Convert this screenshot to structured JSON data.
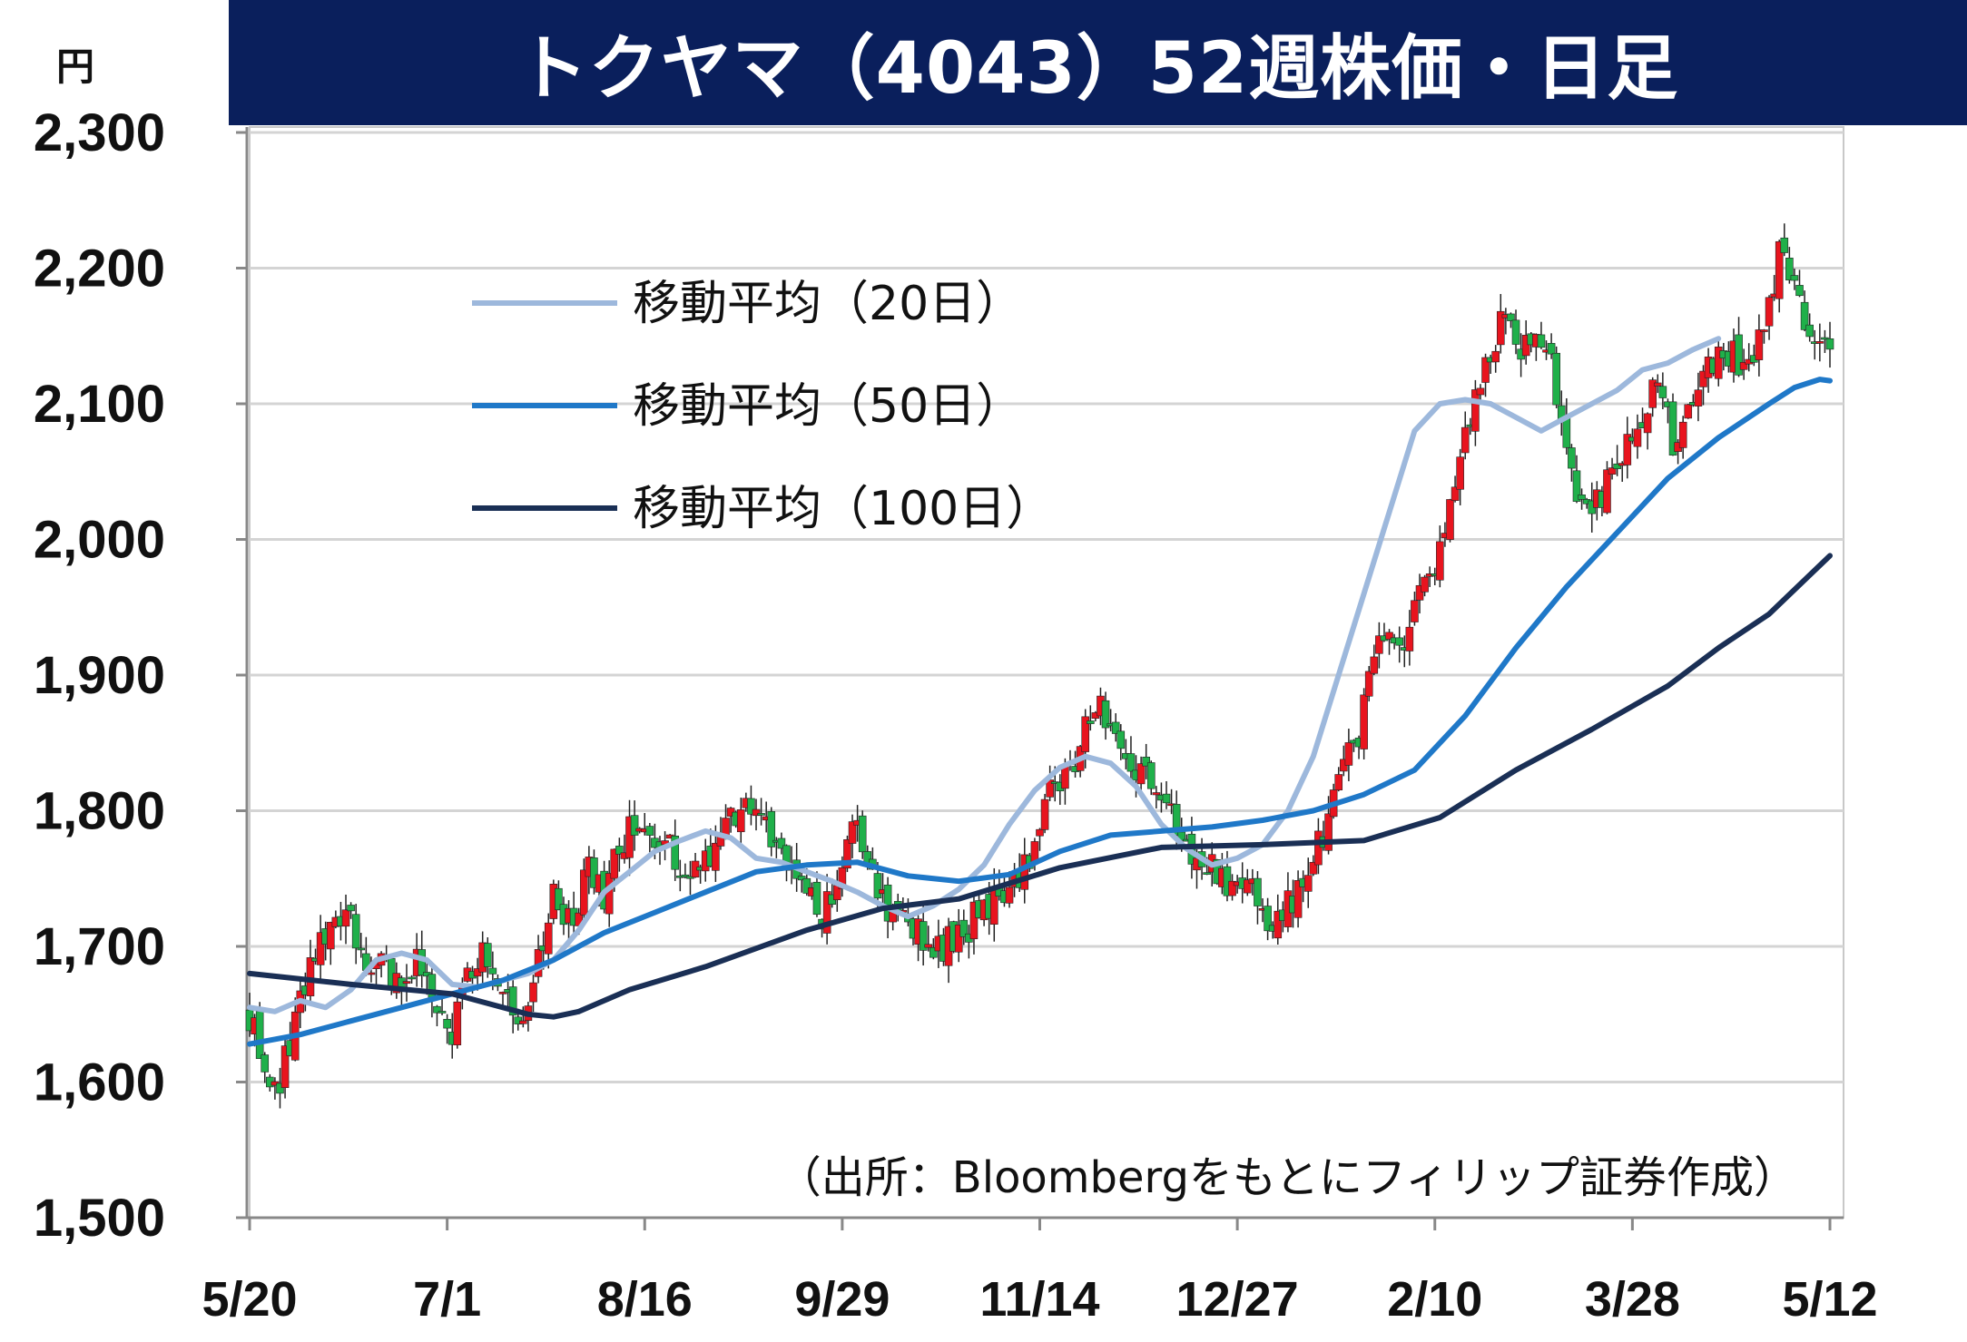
{
  "title": "トクヤマ（4043）52週株価・日足",
  "unit": "円",
  "source": "（出所：Bloombergをもとにフィリップ証券作成）",
  "colors": {
    "title_bg": "#0a1f5c",
    "up": "#e8141e",
    "down": "#1fb04a",
    "ma20": "#9db8dc",
    "ma50": "#1f78c8",
    "ma100": "#1a2f55",
    "grid": "#d4d4d4"
  },
  "chart_data": {
    "type": "candlestick",
    "title": "トクヤマ（4043）52週株価・日足",
    "ylabel": "円",
    "ylim": [
      1500,
      2300
    ],
    "yticks": [
      {
        "value": 1500,
        "label": "1,500"
      },
      {
        "value": 1600,
        "label": "1,600"
      },
      {
        "value": 1700,
        "label": "1,700"
      },
      {
        "value": 1800,
        "label": "1,800"
      },
      {
        "value": 1900,
        "label": "1,900"
      },
      {
        "value": 2000,
        "label": "2,000"
      },
      {
        "value": 2100,
        "label": "2,100"
      },
      {
        "value": 2200,
        "label": "2,200"
      },
      {
        "value": 2300,
        "label": "2,300"
      }
    ],
    "xticks": [
      "5/20",
      "7/1",
      "8/16",
      "9/29",
      "11/14",
      "12/27",
      "2/10",
      "3/28",
      "5/12"
    ],
    "grid": true,
    "legend_position": "upper-left",
    "price_keypoints": [
      [
        0,
        1650
      ],
      [
        3,
        1605
      ],
      [
        5,
        1590
      ],
      [
        8,
        1630
      ],
      [
        12,
        1690
      ],
      [
        16,
        1705
      ],
      [
        19,
        1730
      ],
      [
        22,
        1690
      ],
      [
        26,
        1695
      ],
      [
        30,
        1660
      ],
      [
        33,
        1690
      ],
      [
        36,
        1660
      ],
      [
        40,
        1640
      ],
      [
        43,
        1680
      ],
      [
        46,
        1700
      ],
      [
        50,
        1665
      ],
      [
        54,
        1650
      ],
      [
        57,
        1690
      ],
      [
        60,
        1735
      ],
      [
        64,
        1720
      ],
      [
        67,
        1760
      ],
      [
        70,
        1735
      ],
      [
        73,
        1775
      ],
      [
        76,
        1790
      ],
      [
        80,
        1785
      ],
      [
        84,
        1765
      ],
      [
        88,
        1760
      ],
      [
        92,
        1775
      ],
      [
        95,
        1795
      ],
      [
        98,
        1810
      ],
      [
        101,
        1790
      ],
      [
        104,
        1775
      ],
      [
        107,
        1760
      ],
      [
        110,
        1740
      ],
      [
        113,
        1720
      ],
      [
        116,
        1750
      ],
      [
        119,
        1790
      ],
      [
        122,
        1770
      ],
      [
        125,
        1730
      ],
      [
        128,
        1725
      ],
      [
        132,
        1710
      ],
      [
        136,
        1700
      ],
      [
        140,
        1705
      ],
      [
        143,
        1720
      ],
      [
        146,
        1725
      ],
      [
        149,
        1745
      ],
      [
        152,
        1755
      ],
      [
        155,
        1770
      ],
      [
        158,
        1810
      ],
      [
        162,
        1830
      ],
      [
        165,
        1860
      ],
      [
        167,
        1885
      ],
      [
        170,
        1860
      ],
      [
        173,
        1840
      ],
      [
        176,
        1825
      ],
      [
        180,
        1815
      ],
      [
        183,
        1790
      ],
      [
        186,
        1765
      ],
      [
        189,
        1765
      ],
      [
        192,
        1755
      ],
      [
        195,
        1740
      ],
      [
        198,
        1745
      ],
      [
        201,
        1715
      ],
      [
        204,
        1720
      ],
      [
        207,
        1745
      ],
      [
        210,
        1770
      ],
      [
        213,
        1790
      ],
      [
        216,
        1830
      ],
      [
        219,
        1860
      ],
      [
        221,
        1900
      ],
      [
        224,
        1930
      ],
      [
        227,
        1915
      ],
      [
        230,
        1945
      ],
      [
        233,
        1975
      ],
      [
        236,
        2010
      ],
      [
        239,
        2060
      ],
      [
        242,
        2110
      ],
      [
        245,
        2140
      ],
      [
        248,
        2165
      ],
      [
        251,
        2145
      ],
      [
        254,
        2160
      ],
      [
        256,
        2145
      ],
      [
        259,
        2090
      ],
      [
        261,
        2050
      ],
      [
        264,
        2020
      ],
      [
        267,
        2035
      ],
      [
        270,
        2060
      ],
      [
        273,
        2075
      ],
      [
        276,
        2105
      ],
      [
        278,
        2110
      ],
      [
        281,
        2075
      ],
      [
        284,
        2095
      ],
      [
        287,
        2120
      ],
      [
        290,
        2130
      ],
      [
        293,
        2135
      ],
      [
        296,
        2120
      ],
      [
        299,
        2160
      ],
      [
        302,
        2210
      ],
      [
        304,
        2195
      ],
      [
        306,
        2175
      ],
      [
        308,
        2150
      ],
      [
        310,
        2135
      ],
      [
        312,
        2148
      ]
    ],
    "series": [
      {
        "name": "移動平均（20日）",
        "points": [
          [
            0,
            1655
          ],
          [
            5,
            1652
          ],
          [
            10,
            1660
          ],
          [
            15,
            1655
          ],
          [
            20,
            1668
          ],
          [
            25,
            1690
          ],
          [
            30,
            1695
          ],
          [
            35,
            1690
          ],
          [
            40,
            1672
          ],
          [
            45,
            1670
          ],
          [
            50,
            1675
          ],
          [
            55,
            1680
          ],
          [
            60,
            1690
          ],
          [
            65,
            1712
          ],
          [
            70,
            1740
          ],
          [
            75,
            1755
          ],
          [
            80,
            1770
          ],
          [
            85,
            1778
          ],
          [
            90,
            1785
          ],
          [
            95,
            1780
          ],
          [
            100,
            1765
          ],
          [
            105,
            1762
          ],
          [
            110,
            1755
          ],
          [
            115,
            1748
          ],
          [
            120,
            1740
          ],
          [
            125,
            1730
          ],
          [
            130,
            1722
          ],
          [
            135,
            1730
          ],
          [
            140,
            1742
          ],
          [
            145,
            1760
          ],
          [
            150,
            1790
          ],
          [
            155,
            1815
          ],
          [
            160,
            1832
          ],
          [
            165,
            1840
          ],
          [
            170,
            1835
          ],
          [
            175,
            1818
          ],
          [
            180,
            1790
          ],
          [
            185,
            1772
          ],
          [
            190,
            1760
          ],
          [
            195,
            1765
          ],
          [
            200,
            1775
          ],
          [
            205,
            1800
          ],
          [
            210,
            1840
          ],
          [
            215,
            1900
          ],
          [
            220,
            1960
          ],
          [
            225,
            2020
          ],
          [
            230,
            2080
          ],
          [
            235,
            2100
          ],
          [
            240,
            2103
          ],
          [
            245,
            2100
          ],
          [
            250,
            2090
          ],
          [
            255,
            2080
          ],
          [
            260,
            2090
          ],
          [
            265,
            2100
          ],
          [
            270,
            2110
          ],
          [
            275,
            2125
          ],
          [
            280,
            2130
          ],
          [
            285,
            2140
          ],
          [
            290,
            2148
          ]
        ]
      },
      {
        "name": "移動平均（50日）",
        "points": [
          [
            0,
            1628
          ],
          [
            10,
            1635
          ],
          [
            20,
            1645
          ],
          [
            30,
            1655
          ],
          [
            40,
            1665
          ],
          [
            50,
            1675
          ],
          [
            60,
            1690
          ],
          [
            70,
            1710
          ],
          [
            80,
            1725
          ],
          [
            90,
            1740
          ],
          [
            100,
            1755
          ],
          [
            110,
            1760
          ],
          [
            120,
            1762
          ],
          [
            130,
            1752
          ],
          [
            140,
            1748
          ],
          [
            150,
            1753
          ],
          [
            160,
            1770
          ],
          [
            170,
            1782
          ],
          [
            180,
            1785
          ],
          [
            190,
            1788
          ],
          [
            200,
            1793
          ],
          [
            210,
            1800
          ],
          [
            220,
            1812
          ],
          [
            230,
            1830
          ],
          [
            240,
            1870
          ],
          [
            250,
            1920
          ],
          [
            260,
            1965
          ],
          [
            270,
            2005
          ],
          [
            280,
            2045
          ],
          [
            290,
            2075
          ],
          [
            300,
            2100
          ],
          [
            305,
            2112
          ],
          [
            310,
            2118
          ],
          [
            312,
            2117
          ]
        ]
      },
      {
        "name": "移動平均（100日）",
        "points": [
          [
            0,
            1680
          ],
          [
            20,
            1672
          ],
          [
            40,
            1665
          ],
          [
            55,
            1650
          ],
          [
            60,
            1648
          ],
          [
            65,
            1652
          ],
          [
            75,
            1668
          ],
          [
            90,
            1685
          ],
          [
            110,
            1712
          ],
          [
            125,
            1728
          ],
          [
            140,
            1735
          ],
          [
            160,
            1758
          ],
          [
            180,
            1773
          ],
          [
            200,
            1775
          ],
          [
            220,
            1778
          ],
          [
            235,
            1795
          ],
          [
            250,
            1830
          ],
          [
            265,
            1860
          ],
          [
            280,
            1892
          ],
          [
            290,
            1920
          ],
          [
            300,
            1945
          ],
          [
            312,
            1988
          ]
        ]
      }
    ],
    "n_days": 313
  }
}
